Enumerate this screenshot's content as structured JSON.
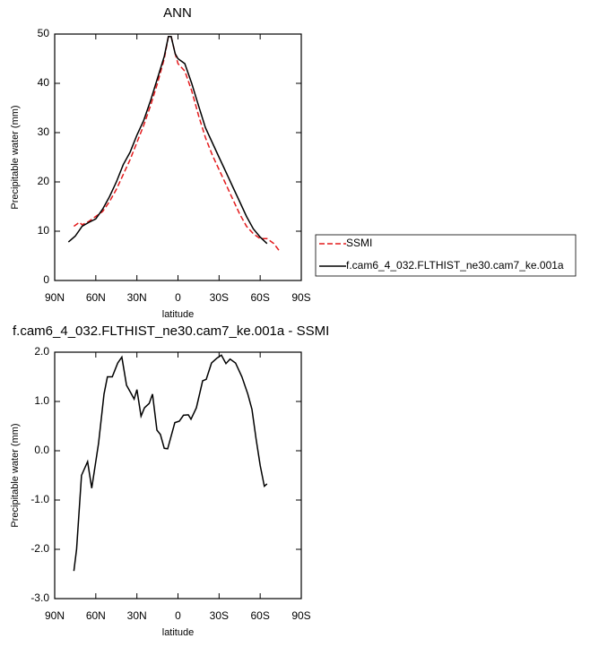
{
  "chart_data": [
    {
      "type": "line",
      "title": "ANN",
      "xlabel": "latitude",
      "ylabel": "Precipitable water (mm)",
      "xlim": [
        90,
        -90
      ],
      "xticks": [
        {
          "value": 90,
          "label": "90N"
        },
        {
          "value": 60,
          "label": "60N"
        },
        {
          "value": 30,
          "label": "30N"
        },
        0,
        {
          "value": -30,
          "label": "30S"
        },
        {
          "value": -60,
          "label": "60S"
        },
        {
          "value": -90,
          "label": "90S"
        }
      ],
      "ylim": [
        0,
        50
      ],
      "yticks": [
        0,
        10,
        20,
        30,
        40,
        50
      ],
      "legend": "right",
      "series": [
        {
          "name": "SSMI",
          "color": "#e41a1c",
          "style": "dashed",
          "x": [
            76,
            72,
            70,
            65,
            60,
            55,
            50,
            45,
            40,
            35,
            30,
            25,
            20,
            15,
            10,
            7,
            5,
            2,
            0,
            -5,
            -10,
            -15,
            -20,
            -25,
            -30,
            -35,
            -40,
            -45,
            -50,
            -55,
            -60,
            -65,
            -70,
            -74
          ],
          "values": [
            11,
            11.8,
            11.3,
            12,
            13,
            14,
            16,
            18.5,
            21.5,
            24.5,
            28,
            31.5,
            35.5,
            40,
            45,
            49.5,
            49.5,
            46,
            44,
            42.5,
            38.5,
            33.5,
            29,
            25.5,
            22.5,
            19.5,
            16.5,
            13.5,
            11,
            9.5,
            8.5,
            8.5,
            7.5,
            6
          ]
        },
        {
          "name": "f.cam6_4_032.FLTHIST_ne30.cam7_ke.001a",
          "color": "#000000",
          "style": "solid",
          "x": [
            80,
            75,
            70,
            65,
            60,
            55,
            50,
            45,
            40,
            35,
            30,
            25,
            20,
            15,
            10,
            7,
            5,
            2,
            0,
            -5,
            -10,
            -15,
            -20,
            -25,
            -30,
            -35,
            -40,
            -45,
            -50,
            -55,
            -60,
            -65
          ],
          "values": [
            7.8,
            9,
            11,
            11.8,
            12.5,
            14.5,
            17,
            20,
            23.5,
            26,
            29.5,
            32.5,
            36.5,
            41,
            45.5,
            49.5,
            49.5,
            46,
            45,
            44,
            40,
            35.5,
            31,
            28,
            25,
            22,
            19,
            16,
            13,
            10.5,
            8.8,
            7.5
          ]
        }
      ]
    },
    {
      "type": "line",
      "title": "f.cam6_4_032.FLTHIST_ne30.cam7_ke.001a - SSMI",
      "xlabel": "latitude",
      "ylabel": "Precipitable water (mm)",
      "xlim": [
        90,
        -90
      ],
      "xticks": [
        {
          "value": 90,
          "label": "90N"
        },
        {
          "value": 60,
          "label": "60N"
        },
        {
          "value": 30,
          "label": "30N"
        },
        0,
        {
          "value": -30,
          "label": "30S"
        },
        {
          "value": -60,
          "label": "60S"
        },
        {
          "value": -90,
          "label": "90S"
        }
      ],
      "ylim": [
        -3,
        2
      ],
      "yticks": [
        {
          "value": 2,
          "label": "2.0"
        },
        {
          "value": 1,
          "label": "1.0"
        },
        {
          "value": 0,
          "label": "0.0"
        },
        {
          "value": -1,
          "label": "-1.0"
        },
        {
          "value": -2,
          "label": "-2.0"
        },
        {
          "value": -3,
          "label": "-3.0"
        }
      ],
      "series": [
        {
          "color": "#000000",
          "style": "solid",
          "x": [
            76,
            74,
            70.4,
            66,
            63,
            58,
            54,
            51.5,
            48,
            44,
            41,
            37.6,
            34,
            32,
            30,
            27,
            24.5,
            21,
            18.6,
            15.4,
            12.8,
            10,
            7.5,
            2.3,
            -1,
            -4,
            -7.5,
            -9.5,
            -13.4,
            -18,
            -20.6,
            -24.5,
            -28.5,
            -31.7,
            -35,
            -38,
            -42,
            -46.7,
            -51,
            -54,
            -57,
            -60,
            -63,
            -65
          ],
          "values": [
            -2.44,
            -2,
            -0.5,
            -0.22,
            -0.76,
            0.15,
            1.15,
            1.5,
            1.5,
            1.78,
            1.9,
            1.33,
            1.15,
            1.05,
            1.24,
            0.7,
            0.87,
            0.96,
            1.15,
            0.42,
            0.33,
            0.05,
            0.04,
            0.57,
            0.6,
            0.72,
            0.73,
            0.64,
            0.87,
            1.42,
            1.45,
            1.78,
            1.88,
            1.94,
            1.77,
            1.86,
            1.78,
            1.5,
            1.15,
            0.84,
            0.24,
            -0.3,
            -0.72,
            -0.67
          ]
        }
      ]
    }
  ]
}
